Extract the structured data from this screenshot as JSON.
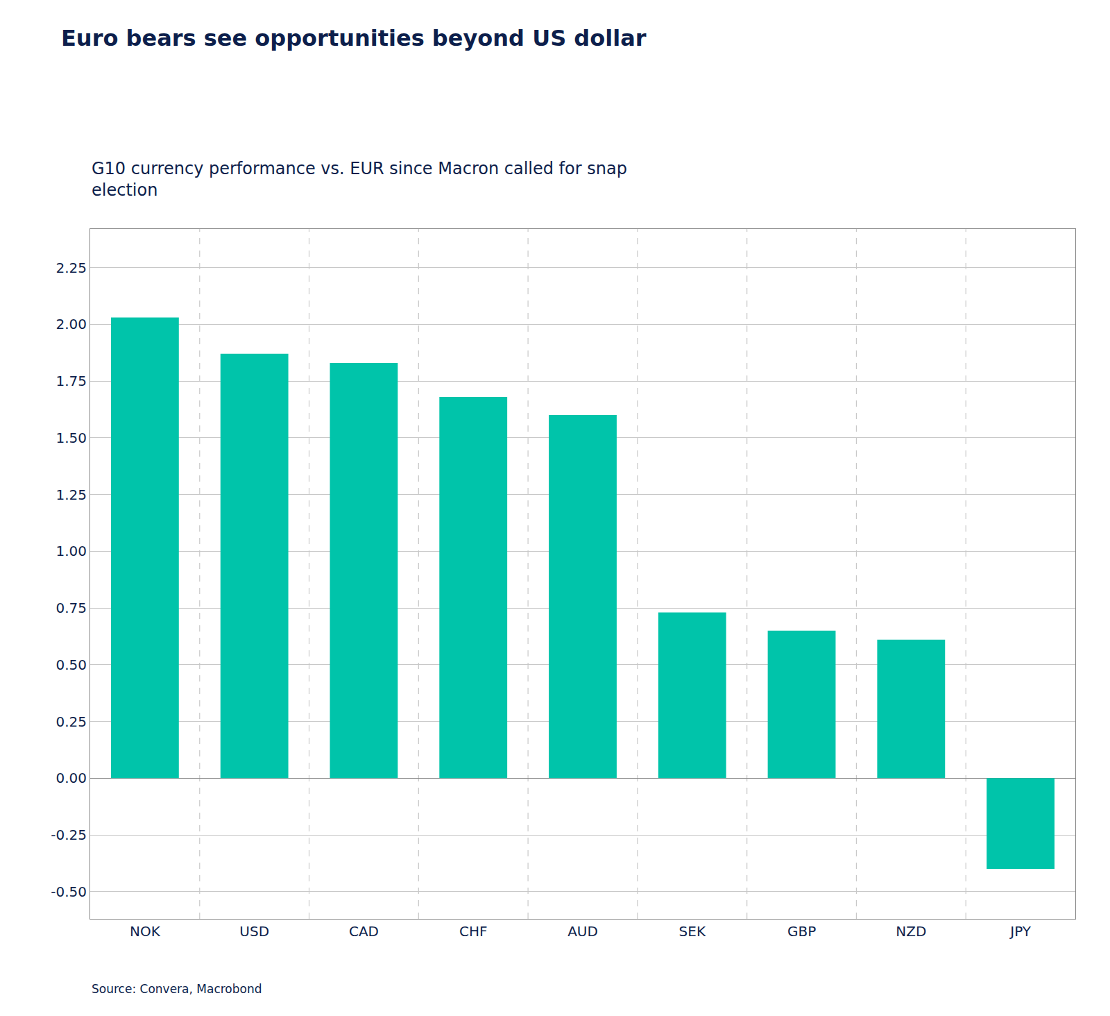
{
  "chart_data": {
    "type": "bar",
    "title": "Euro bears see opportunities beyond US dollar",
    "subtitle": "G10 currency performance vs. EUR since Macron called for snap\nelection",
    "source": "Source: Convera, Macrobond",
    "categories": [
      "NOK",
      "USD",
      "CAD",
      "CHF",
      "AUD",
      "SEK",
      "GBP",
      "NZD",
      "JPY"
    ],
    "values": [
      2.03,
      1.87,
      1.83,
      1.68,
      1.6,
      0.73,
      0.65,
      0.61,
      -0.4
    ],
    "color": "#00C4AA",
    "ylim": [
      -0.62,
      2.42
    ],
    "yticks": [
      {
        "value": -0.5,
        "label": "-0.50"
      },
      -0.25,
      {
        "value": 0.0,
        "label": "0.00"
      },
      0.25,
      {
        "value": 0.5,
        "label": "0.50"
      },
      0.75,
      {
        "value": 1.0,
        "label": "1.00"
      },
      1.25,
      {
        "value": 1.5,
        "label": "1.50"
      },
      1.75,
      {
        "value": 2.0,
        "label": "2.00"
      },
      2.25
    ],
    "grid": true
  }
}
